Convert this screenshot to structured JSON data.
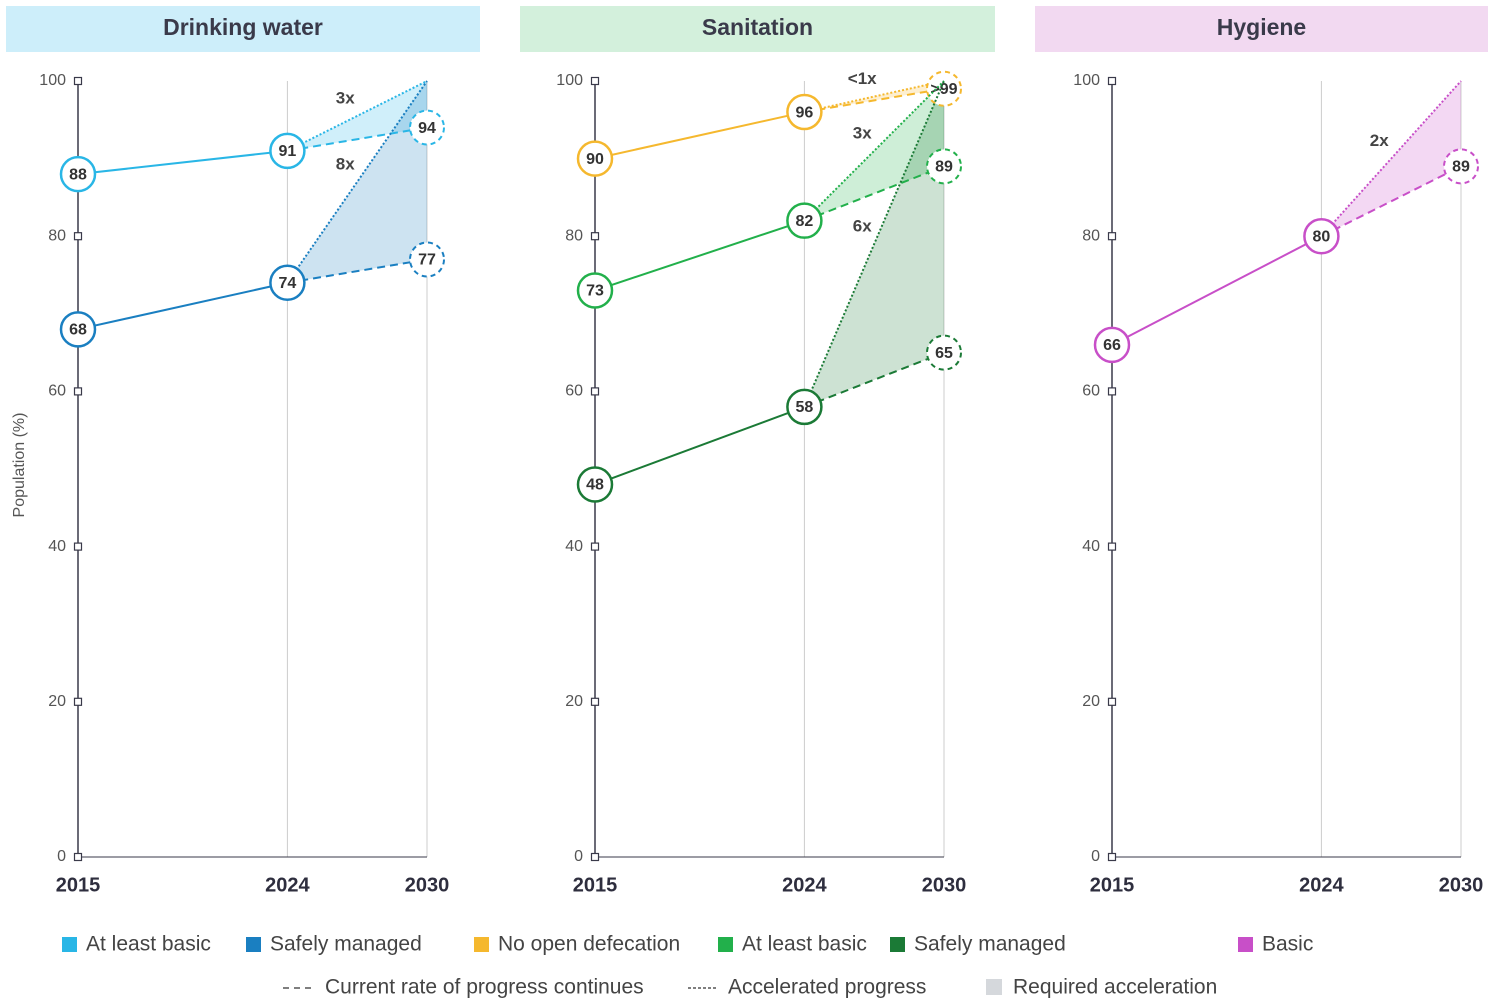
{
  "chart_data": [
    {
      "type": "line",
      "title": "Drinking water",
      "ylabel": "Population (%)",
      "x": [
        2015,
        2024,
        2030
      ],
      "xlim": [
        2015,
        2030
      ],
      "xticks": [
        2015,
        2024,
        2030
      ],
      "ylim": [
        0,
        100
      ],
      "yticks": [
        0,
        20,
        40,
        60,
        80,
        100
      ],
      "header_color": "#cdeefa",
      "series": [
        {
          "name": "At least basic",
          "color": "#29b6e6",
          "values": [
            88,
            91,
            94
          ],
          "target": 100,
          "annotation": "3x"
        },
        {
          "name": "Safely managed",
          "color": "#1a7fc1",
          "values": [
            68,
            74,
            77
          ],
          "target": 100,
          "annotation": "8x"
        }
      ]
    },
    {
      "type": "line",
      "title": "Sanitation",
      "x": [
        2015,
        2024,
        2030
      ],
      "xlim": [
        2015,
        2030
      ],
      "xticks": [
        2015,
        2024,
        2030
      ],
      "ylim": [
        0,
        100
      ],
      "yticks": [
        0,
        20,
        40,
        60,
        80,
        100
      ],
      "header_color": "#d3f0dc",
      "series": [
        {
          "name": "No open defecation",
          "color": "#f5b82e",
          "values": [
            90,
            96,
            99
          ],
          "value_labels": [
            "90",
            "96",
            ">99"
          ],
          "target": 100,
          "annotation": "<1x"
        },
        {
          "name": "At least basic",
          "color": "#22b04b",
          "values": [
            73,
            82,
            89
          ],
          "target": 100,
          "annotation": "3x"
        },
        {
          "name": "Safely managed",
          "color": "#1b7a36",
          "values": [
            48,
            58,
            65
          ],
          "target": 100,
          "annotation": "6x"
        }
      ]
    },
    {
      "type": "line",
      "title": "Hygiene",
      "x": [
        2015,
        2024,
        2030
      ],
      "xlim": [
        2015,
        2030
      ],
      "xticks": [
        2015,
        2024,
        2030
      ],
      "ylim": [
        0,
        100
      ],
      "yticks": [
        0,
        20,
        40,
        60,
        80,
        100
      ],
      "header_color": "#f2d9f1",
      "series": [
        {
          "name": "Basic",
          "color": "#c84fc8",
          "values": [
            66,
            80,
            89
          ],
          "target": 100,
          "annotation": "2x"
        }
      ]
    }
  ],
  "legend": {
    "current": "Current rate of progress continues",
    "accelerated": "Accelerated progress",
    "required": "Required acceleration",
    "required_color": "#d5d8dc"
  }
}
